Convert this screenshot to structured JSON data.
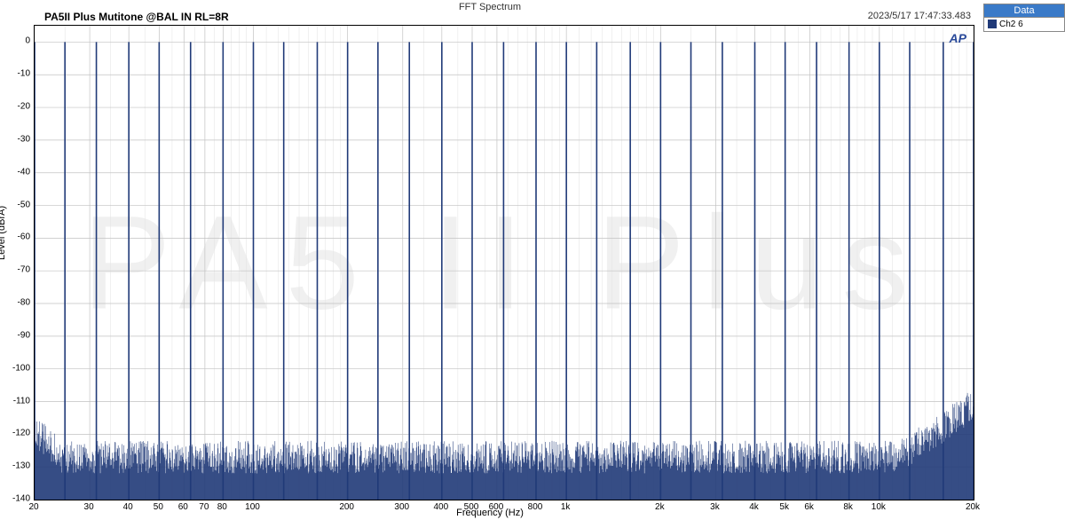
{
  "chart": {
    "type": "fft-spectrum-log",
    "title_main": "FFT Spectrum",
    "title_left": "PA5II Plus Mutitone @BAL IN  RL=8R",
    "title_right": "2023/5/17 17:47:33.483",
    "watermark": "PA5 II Plus",
    "logo_text": "AP",
    "x_axis": {
      "label": "Frequency (Hz)",
      "scale": "log",
      "min": 20,
      "max": 20000,
      "ticks": [
        {
          "v": 20,
          "label": "20"
        },
        {
          "v": 30,
          "label": "30"
        },
        {
          "v": 40,
          "label": "40"
        },
        {
          "v": 50,
          "label": "50"
        },
        {
          "v": 60,
          "label": "60"
        },
        {
          "v": 70,
          "label": "70"
        },
        {
          "v": 80,
          "label": "80"
        },
        {
          "v": 100,
          "label": "100"
        },
        {
          "v": 200,
          "label": "200"
        },
        {
          "v": 300,
          "label": "300"
        },
        {
          "v": 400,
          "label": "400"
        },
        {
          "v": 500,
          "label": "500"
        },
        {
          "v": 600,
          "label": "600"
        },
        {
          "v": 800,
          "label": "800"
        },
        {
          "v": 1000,
          "label": "1k"
        },
        {
          "v": 2000,
          "label": "2k"
        },
        {
          "v": 3000,
          "label": "3k"
        },
        {
          "v": 4000,
          "label": "4k"
        },
        {
          "v": 5000,
          "label": "5k"
        },
        {
          "v": 6000,
          "label": "6k"
        },
        {
          "v": 8000,
          "label": "8k"
        },
        {
          "v": 10000,
          "label": "10k"
        },
        {
          "v": 20000,
          "label": "20k"
        }
      ],
      "minor_grid": [
        25,
        35,
        45,
        55,
        65,
        75,
        85,
        90,
        95,
        110,
        120,
        130,
        140,
        150,
        160,
        170,
        180,
        190,
        250,
        350,
        450,
        550,
        650,
        700,
        750,
        850,
        900,
        950,
        1100,
        1200,
        1300,
        1400,
        1500,
        1600,
        1700,
        1800,
        1900,
        2500,
        3500,
        4500,
        5500,
        6500,
        7000,
        7500,
        8500,
        9000,
        9500,
        11000,
        12000,
        13000,
        14000,
        15000,
        16000,
        17000,
        18000,
        19000
      ]
    },
    "y_axis": {
      "label": "Level (dBrA)",
      "scale": "linear",
      "min": -140,
      "max": 5,
      "ticks": [
        0,
        -10,
        -20,
        -30,
        -40,
        -50,
        -60,
        -70,
        -80,
        -90,
        -100,
        -110,
        -120,
        -130,
        -140
      ]
    },
    "colors": {
      "background": "#ffffff",
      "plot_bg": "#ffffff",
      "grid_major": "#c2c2c2",
      "grid_minor": "#e2e2e2",
      "series": "#203a78",
      "border": "#000000",
      "legend_header_bg": "#3a7ac8",
      "legend_header_fg": "#ffffff",
      "watermark": "#f0f0f0",
      "logo": "#2a4a9a"
    },
    "series": [
      {
        "name": "Ch2 6",
        "color": "#203a78",
        "tone_peak_db": 0,
        "tone_freqs_hz": [
          20,
          25,
          31.5,
          40,
          50,
          63,
          80,
          100,
          125,
          160,
          200,
          250,
          315,
          400,
          500,
          630,
          800,
          1000,
          1250,
          1600,
          2000,
          2500,
          3150,
          4000,
          5000,
          6300,
          8000,
          10000,
          12500,
          16000,
          20000
        ],
        "noise_floor_db": -130,
        "noise_floor_jitter_db": 10,
        "noise_rise_end_db": -115
      }
    ],
    "legend": {
      "header": "Data",
      "items": [
        {
          "label": "Ch2 6",
          "color": "#203a78"
        }
      ]
    }
  }
}
